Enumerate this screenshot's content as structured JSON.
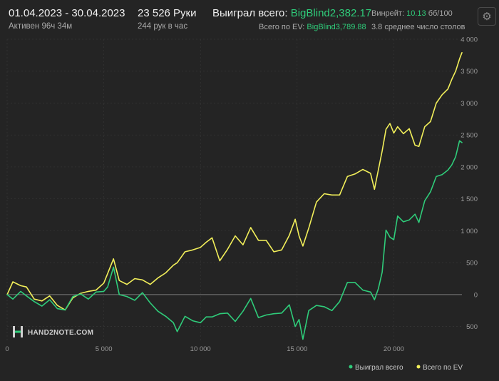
{
  "header": {
    "date_range": "01.04.2023 - 30.04.2023",
    "active_time": "Активен 96ч 34м",
    "hands": "23 526 Руки",
    "hands_per_hour": "244 рук в час",
    "won_total_label": "Выиграл всего:",
    "won_total_value": "BigBlind2,382.17",
    "ev_total_label": "Всего по EV:",
    "ev_total_value": "BigBlind3,789.88",
    "winrate_label": "Винрейт:",
    "winrate_value": "10.13",
    "winrate_unit": "бб/100",
    "tables_avg": "3.8 среднее число столов",
    "settings_icon": "gear-icon"
  },
  "logo": {
    "name": "HAND2NOTE.COM"
  },
  "colors": {
    "won_series": "#2fcc7a",
    "ev_series": "#f2ef5a",
    "background": "#242424",
    "grid": "#363636",
    "zero_line": "#7a7a7a"
  },
  "chart_data": {
    "type": "line",
    "title": "",
    "xlabel": "",
    "ylabel": "",
    "xlim": [
      0,
      23526
    ],
    "ylim": [
      -750,
      4000
    ],
    "x_ticks": [
      0,
      5000,
      10000,
      15000,
      20000
    ],
    "x_tick_labels": [
      "0",
      "5 000",
      "10 000",
      "15 000",
      "20 000"
    ],
    "y_ticks": [
      4000,
      3500,
      3000,
      2500,
      2000,
      1500,
      1000,
      500,
      0,
      -500
    ],
    "y_tick_labels": [
      "4 000",
      "3 500",
      "3 000",
      "2 500",
      "2 000",
      "1 500",
      "1 000",
      "500",
      "0",
      "500"
    ],
    "grid": true,
    "legend_position": "bottom-right",
    "series": [
      {
        "name": "Выиграл всего",
        "color": "#2fcc7a",
        "x": [
          0,
          300,
          700,
          1000,
          1400,
          1800,
          2200,
          2600,
          3000,
          3400,
          3800,
          4200,
          4600,
          5000,
          5200,
          5500,
          5800,
          6200,
          6600,
          7000,
          7400,
          7800,
          8200,
          8600,
          8800,
          9200,
          9600,
          10000,
          10300,
          10600,
          11000,
          11400,
          11800,
          12200,
          12600,
          13000,
          13400,
          13800,
          14200,
          14600,
          14900,
          15100,
          15300,
          15600,
          16000,
          16400,
          16800,
          17200,
          17600,
          18000,
          18400,
          18800,
          19000,
          19200,
          19400,
          19600,
          19800,
          20000,
          20200,
          20500,
          20800,
          21100,
          21300,
          21600,
          21900,
          22200,
          22500,
          22800,
          23000,
          23200,
          23400,
          23526
        ],
        "y": [
          0,
          -70,
          50,
          -20,
          -110,
          -180,
          -80,
          -220,
          -240,
          -30,
          10,
          -70,
          40,
          50,
          120,
          430,
          0,
          -30,
          -90,
          30,
          -130,
          -260,
          -340,
          -440,
          -580,
          -340,
          -410,
          -440,
          -350,
          -350,
          -300,
          -290,
          -420,
          -260,
          -60,
          -360,
          -320,
          -300,
          -290,
          -160,
          -500,
          -390,
          -700,
          -250,
          -170,
          -190,
          -250,
          -110,
          190,
          190,
          70,
          40,
          -80,
          90,
          350,
          1010,
          900,
          860,
          1230,
          1140,
          1170,
          1260,
          1130,
          1470,
          1610,
          1850,
          1880,
          1950,
          2030,
          2160,
          2410,
          2382
        ]
      },
      {
        "name": "Всего по EV",
        "color": "#f2ef5a",
        "x": [
          0,
          300,
          700,
          1000,
          1400,
          1800,
          2200,
          2600,
          3000,
          3400,
          3800,
          4200,
          4600,
          5000,
          5200,
          5500,
          5800,
          6200,
          6600,
          7000,
          7400,
          7800,
          8200,
          8600,
          8800,
          9200,
          9600,
          10000,
          10300,
          10600,
          11000,
          11400,
          11800,
          12200,
          12600,
          13000,
          13400,
          13800,
          14200,
          14600,
          14900,
          15100,
          15300,
          15600,
          16000,
          16400,
          16800,
          17200,
          17600,
          18000,
          18400,
          18800,
          19000,
          19200,
          19400,
          19600,
          19800,
          20000,
          20200,
          20500,
          20800,
          21100,
          21300,
          21600,
          21900,
          22200,
          22500,
          22800,
          23000,
          23200,
          23400,
          23526
        ],
        "y": [
          0,
          200,
          140,
          120,
          -70,
          -100,
          -20,
          -170,
          -240,
          -50,
          20,
          50,
          70,
          180,
          330,
          560,
          220,
          160,
          250,
          230,
          160,
          260,
          340,
          460,
          500,
          670,
          700,
          740,
          820,
          890,
          530,
          710,
          920,
          780,
          1050,
          850,
          850,
          670,
          700,
          930,
          1180,
          920,
          760,
          1040,
          1450,
          1580,
          1560,
          1560,
          1850,
          1890,
          1960,
          1900,
          1650,
          1950,
          2250,
          2590,
          2680,
          2530,
          2630,
          2520,
          2600,
          2340,
          2320,
          2630,
          2710,
          3000,
          3130,
          3220,
          3370,
          3500,
          3690,
          3790
        ]
      }
    ]
  }
}
